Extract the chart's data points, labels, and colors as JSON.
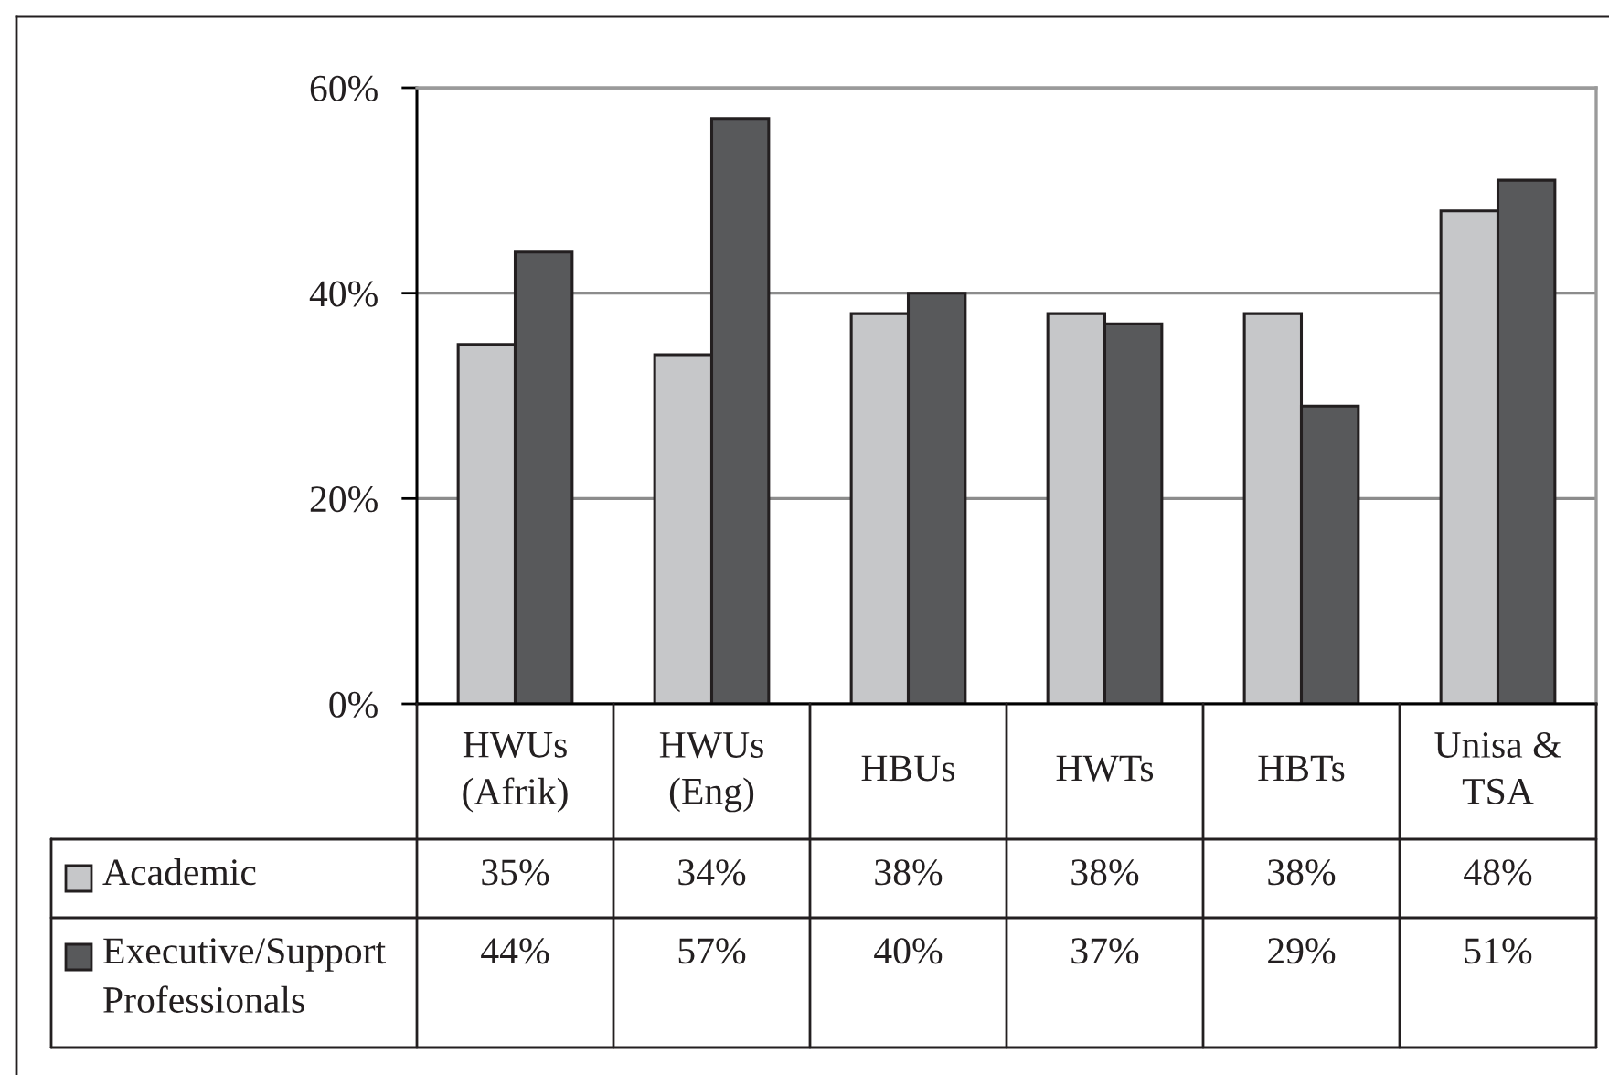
{
  "chart_data": {
    "type": "bar",
    "categories": [
      "HWUs\n(Afrik)",
      "HWUs\n(Eng)",
      "HBUs",
      "HWTs",
      "HBTs",
      "Unisa &\nTSA"
    ],
    "series": [
      {
        "name": "Academic",
        "color": "#c6c7c9",
        "values": [
          35,
          34,
          38,
          38,
          38,
          48
        ],
        "value_labels": [
          "35%",
          "34%",
          "38%",
          "38%",
          "38%",
          "48%"
        ]
      },
      {
        "name": "Executive/Support\nProfessionals",
        "color": "#58595b",
        "values": [
          44,
          57,
          40,
          37,
          29,
          51
        ],
        "value_labels": [
          "44%",
          "57%",
          "40%",
          "37%",
          "29%",
          "51%"
        ]
      }
    ],
    "ylim": [
      0,
      60
    ],
    "yticks": [
      {
        "value": 0,
        "label": "0%"
      },
      {
        "value": 20,
        "label": "20%"
      },
      {
        "value": 40,
        "label": "40%"
      },
      {
        "value": 60,
        "label": "60%"
      }
    ],
    "grid": "y",
    "legend": "bottom left"
  }
}
